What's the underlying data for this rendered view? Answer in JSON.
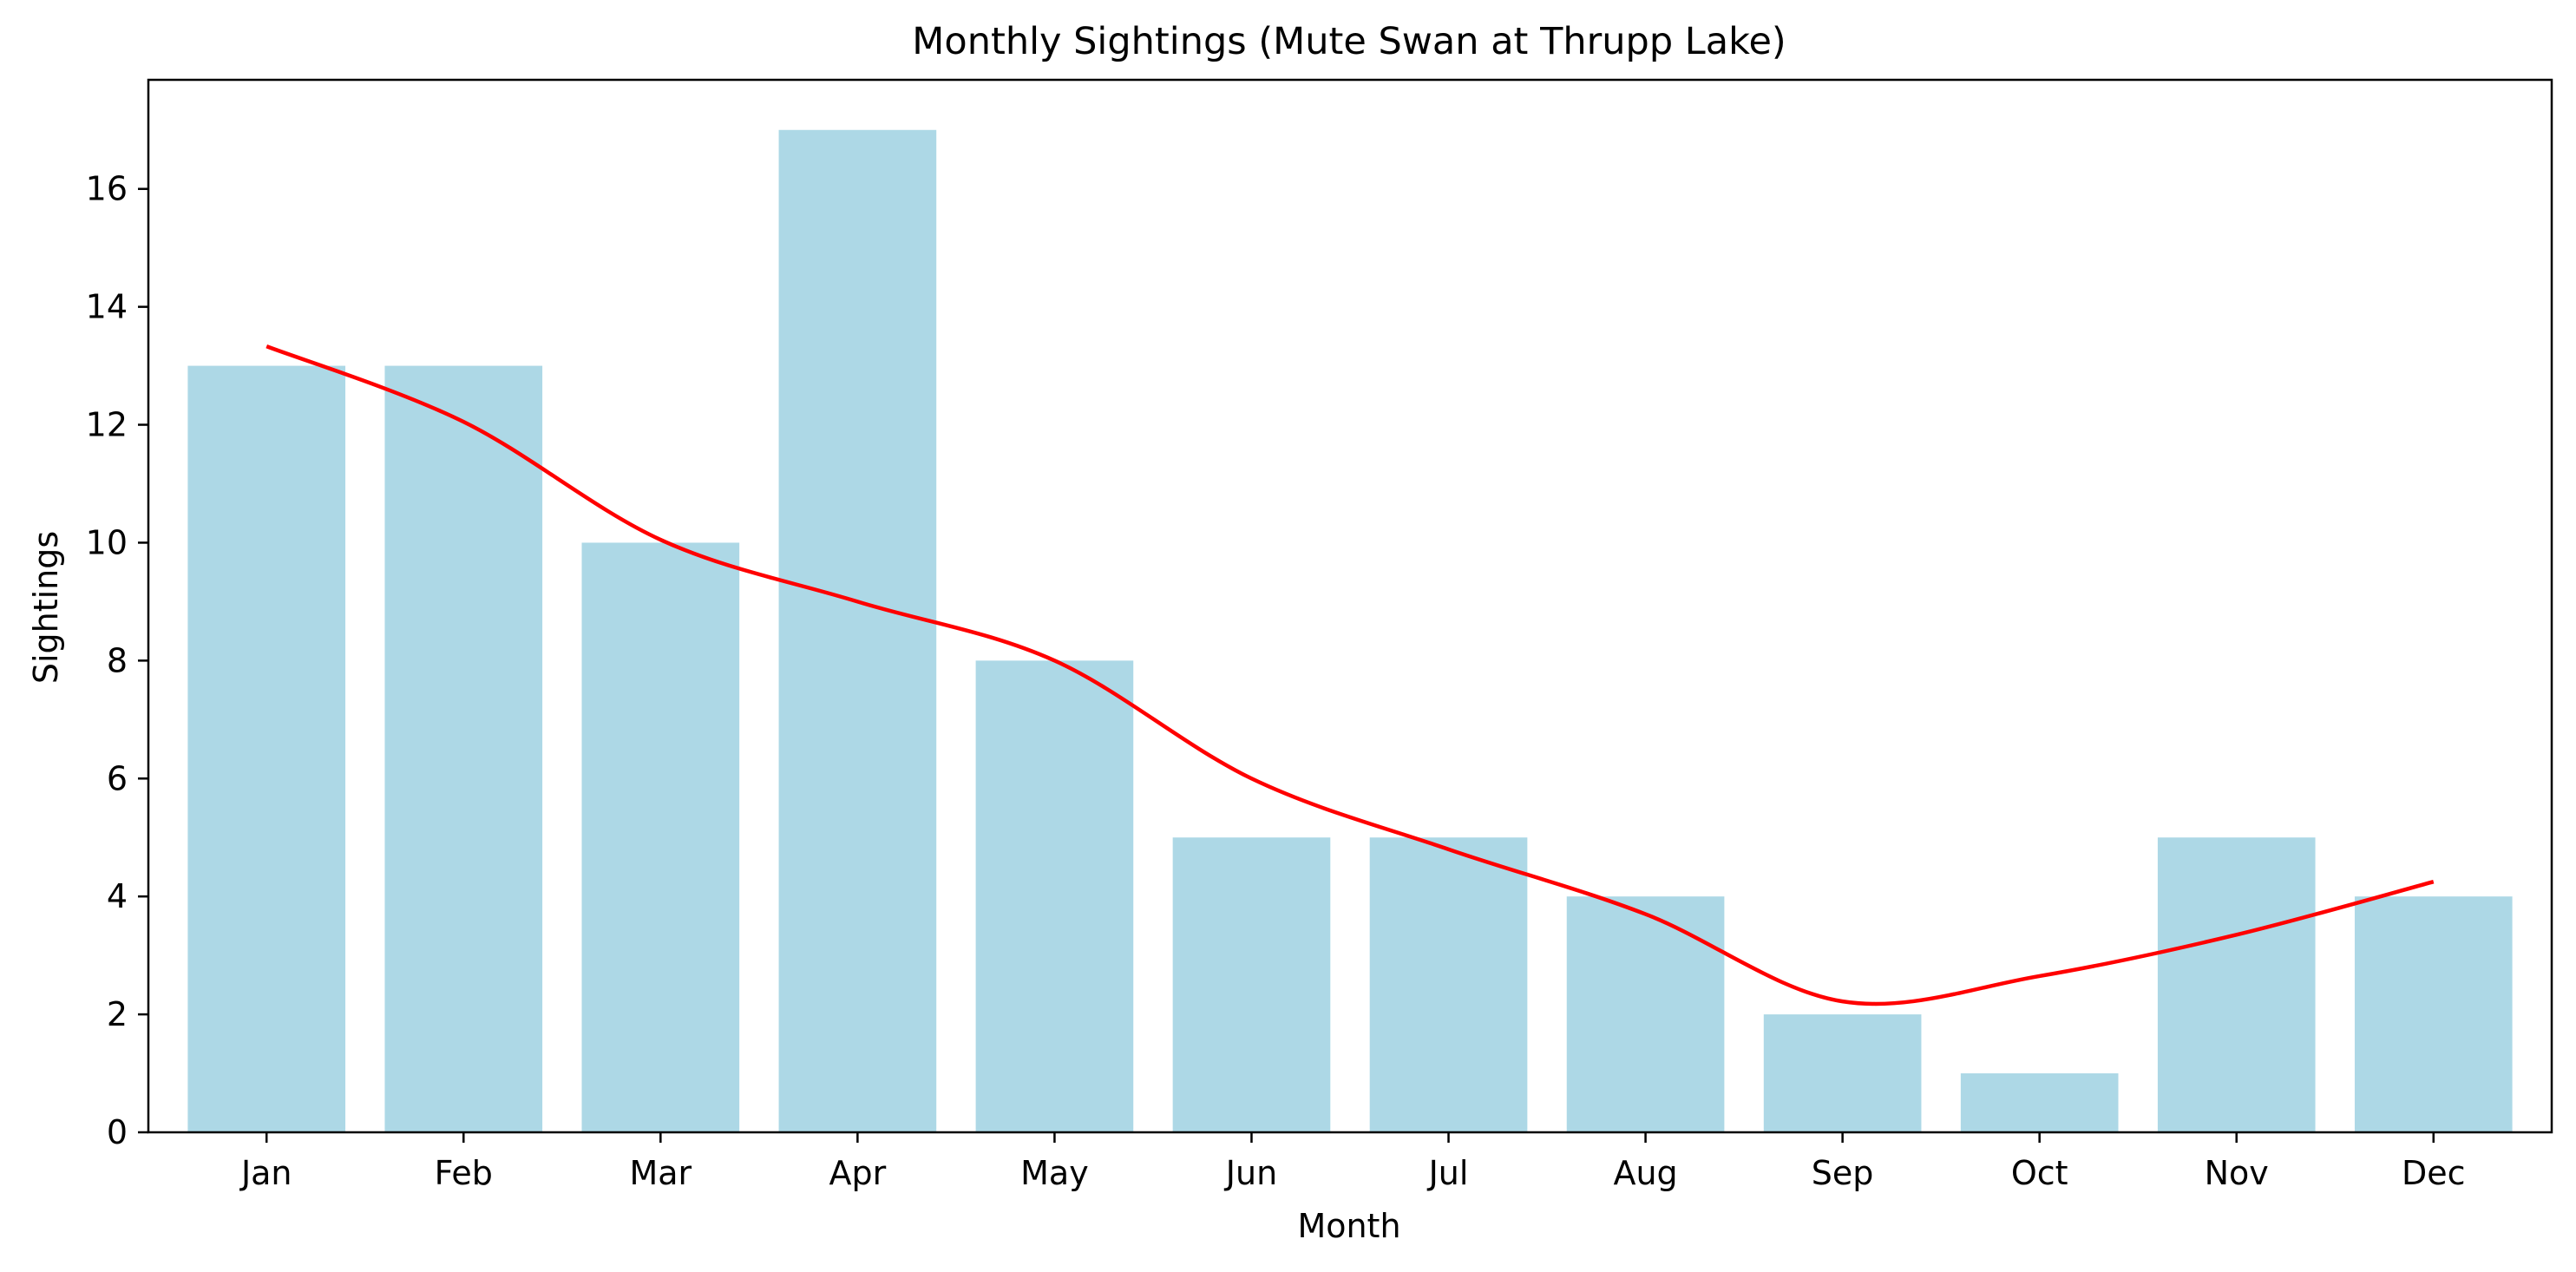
{
  "chart_data": {
    "type": "bar",
    "title": "Monthly Sightings (Mute Swan at Thrupp Lake)",
    "xlabel": "Month",
    "ylabel": "Sightings",
    "categories": [
      "Jan",
      "Feb",
      "Mar",
      "Apr",
      "May",
      "Jun",
      "Jul",
      "Aug",
      "Sep",
      "Oct",
      "Nov",
      "Dec"
    ],
    "values": [
      13,
      13,
      10,
      17,
      8,
      5,
      5,
      4,
      2,
      1,
      5,
      4
    ],
    "ylim": [
      0,
      17.85
    ],
    "yticks": [
      0,
      2,
      4,
      6,
      8,
      10,
      12,
      14,
      16
    ],
    "grid": false,
    "trend_line": {
      "type": "smoothed",
      "values": [
        13.33,
        12.05,
        10.05,
        9.0,
        8.0,
        6.0,
        4.8,
        3.7,
        2.22,
        2.65,
        3.35,
        4.25
      ]
    },
    "colors": {
      "bar": "#add8e6",
      "trend_line": "#ff0000",
      "axes": "#000000"
    }
  }
}
